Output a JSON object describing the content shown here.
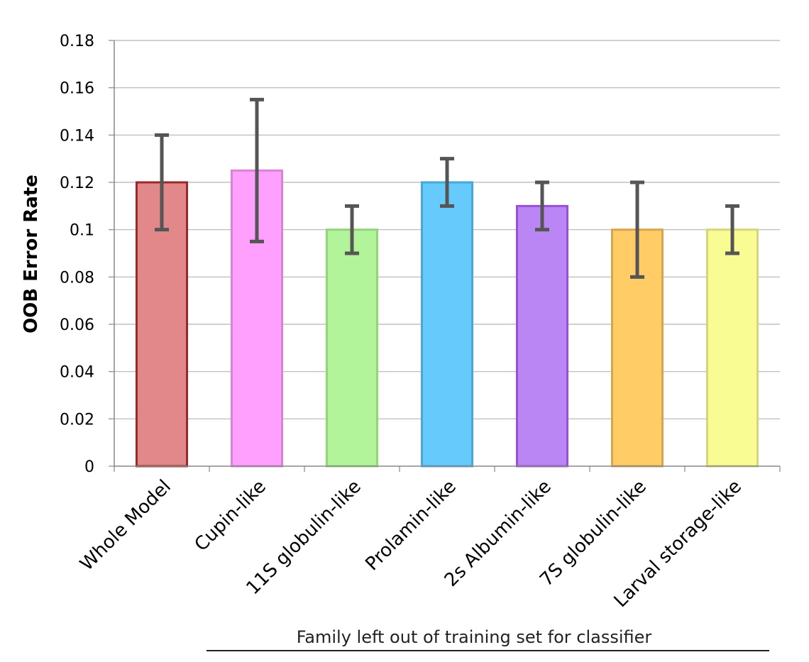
{
  "chart_data": {
    "type": "bar",
    "categories": [
      "Whole Model",
      "Cupin-like",
      "11S globulin-like",
      "Prolamin-like",
      "2s Albumin-like",
      "7S globulin-like",
      "Larval storage-like"
    ],
    "values": [
      0.12,
      0.125,
      0.1,
      0.12,
      0.11,
      0.1,
      0.1
    ],
    "error_low": [
      0.1,
      0.095,
      0.09,
      0.11,
      0.1,
      0.08,
      0.09
    ],
    "error_high": [
      0.14,
      0.155,
      0.11,
      0.13,
      0.12,
      0.12,
      0.11
    ],
    "colors": [
      "#e3888a",
      "#ff9ffe",
      "#b2f49a",
      "#66cafd",
      "#ba86f4",
      "#ffcc66",
      "#f9fc92"
    ],
    "border_colors": [
      "#9a2a2a",
      "#d983d5",
      "#93d47a",
      "#45a8d8",
      "#9a4fd8",
      "#d9a44e",
      "#d5d67a"
    ],
    "error_bar_color": "#555555",
    "ylabel": "OOB Error Rate",
    "xlabel": "Family left out of training set for classifier",
    "ylim": [
      0,
      0.18
    ],
    "yticks": [
      "0",
      "0.02",
      "0.04",
      "0.06",
      "0.08",
      "0.1",
      "0.12",
      "0.14",
      "0.16",
      "0.18"
    ],
    "grid": true
  }
}
